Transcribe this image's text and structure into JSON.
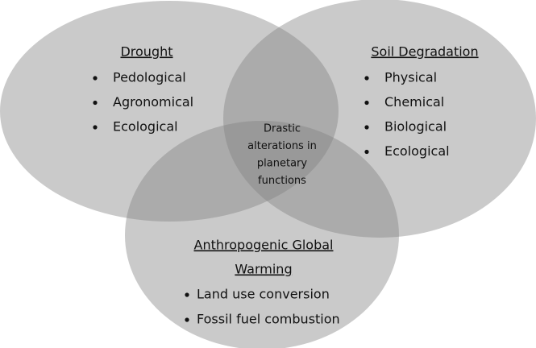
{
  "groups": [
    {
      "title_lines": [
        "Drought"
      ],
      "items": [
        "Pedological",
        "Agronomical",
        "Ecological"
      ]
    },
    {
      "title_lines": [
        "Soil Degradation"
      ],
      "items": [
        "Physical",
        "Chemical",
        "Biological",
        "Ecological"
      ]
    },
    {
      "title_lines": [
        "Anthropogenic Global",
        "Warming"
      ],
      "items": [
        "Land use conversion",
        "Fossil fuel combustion"
      ]
    }
  ],
  "center": {
    "lines": [
      "Drastic",
      "alterations in",
      "planetary",
      "functions"
    ]
  }
}
